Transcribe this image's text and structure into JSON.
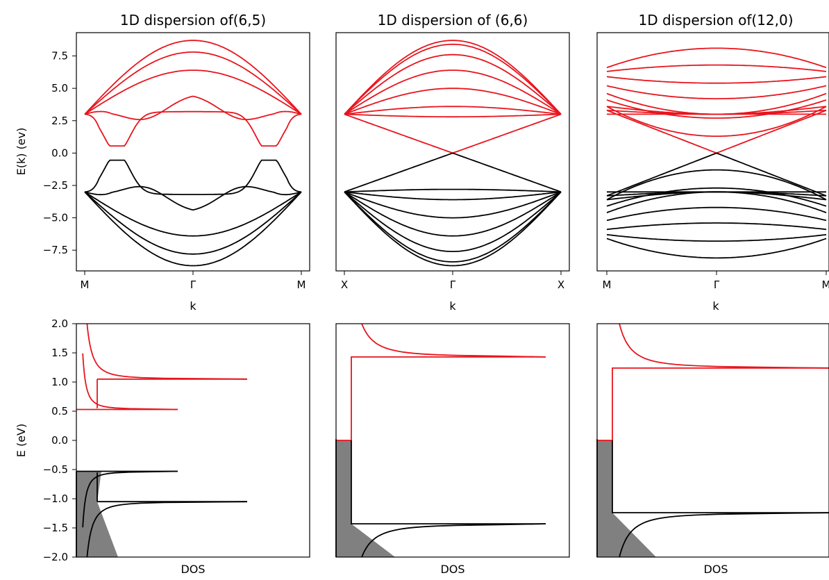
{
  "panels_top": [
    {
      "title": "1D dispersion of(6,5)",
      "xlabel": "k",
      "ylabel": "E(k) (ev)",
      "xticks": [
        "M",
        "Γ",
        "M"
      ],
      "ylim": [
        -9.1,
        9.3
      ],
      "yticks": [
        "7.5",
        "5.0",
        "2.5",
        "0.0",
        "−2.5",
        "−5.0",
        "−7.5"
      ],
      "show_yticks": true
    },
    {
      "title": "1D dispersion of (6,6)",
      "xlabel": "k",
      "ylabel": "",
      "xticks": [
        "X",
        "Γ",
        "X"
      ],
      "ylim": [
        -9.1,
        9.3
      ],
      "yticks": [],
      "show_yticks": false
    },
    {
      "title": "1D dispersion of(12,0)",
      "xlabel": "k",
      "ylabel": "",
      "xticks": [
        "M",
        "Γ",
        "M"
      ],
      "ylim": [
        -9.1,
        9.3
      ],
      "yticks": [],
      "show_yticks": false
    }
  ],
  "panels_bottom": [
    {
      "xlabel": "DOS",
      "ylabel": "E (eV)",
      "yticks": [
        "2.0",
        "1.5",
        "1.0",
        "0.5",
        "0.0",
        "−0.5",
        "−1.0",
        "−1.5",
        "−2.0"
      ],
      "show_yticks": true
    },
    {
      "xlabel": "DOS",
      "ylabel": "",
      "yticks": [],
      "show_yticks": false
    },
    {
      "xlabel": "DOS",
      "ylabel": "",
      "yticks": [],
      "show_yticks": false
    }
  ],
  "colors": {
    "conduction": "#e8141c",
    "valence": "#000000",
    "fill": "#808080"
  },
  "chart_data": [
    {
      "type": "line",
      "title": "1D dispersion of(6,5)",
      "xlabel": "k",
      "ylabel": "E(k) (ev)",
      "ylim": [
        -9.1,
        9.3
      ],
      "x_ticks": [
        "M",
        "Γ",
        "M"
      ],
      "edge_energy": 3.0,
      "conduction_gamma": [
        8.7,
        7.8,
        6.4,
        4.6,
        3.2
      ],
      "conduction_dips": [
        {
          "min": 0.55,
          "at": 0.15
        },
        {
          "min": 2.0,
          "at": 0.28
        }
      ],
      "valence_mirror": true
    },
    {
      "type": "line",
      "title": "1D dispersion of (6,6)",
      "xlabel": "k",
      "ylabel": "",
      "ylim": [
        -9.1,
        9.3
      ],
      "x_ticks": [
        "X",
        "Γ",
        "X"
      ],
      "edge_energy": 3.0,
      "conduction_gamma": [
        8.7,
        8.4,
        7.6,
        6.4,
        5.0,
        3.6,
        2.8
      ],
      "metallic_crossing": 0.0,
      "valence_mirror": true
    },
    {
      "type": "line",
      "title": "1D dispersion of(12,0)",
      "xlabel": "k",
      "ylabel": "",
      "ylim": [
        -9.1,
        9.3
      ],
      "x_ticks": [
        "M",
        "Γ",
        "M"
      ],
      "conduction_gamma": [
        8.1,
        6.8,
        5.4,
        4.2,
        3.0,
        2.7,
        1.3
      ],
      "conduction_edges": [
        6.6,
        6.3,
        5.9,
        5.2,
        4.6,
        4.1,
        3.6,
        3.3,
        3.0
      ],
      "metallic_crossing": 0.0,
      "valence_mirror": true
    },
    {
      "type": "line",
      "xlabel": "DOS",
      "ylabel": "E (eV)",
      "ylim": [
        -2.0,
        2.0
      ],
      "conduction_vhs": [
        0.53,
        1.05
      ],
      "valence_vhs": [
        -0.53,
        -1.05
      ],
      "fill_valence": true
    },
    {
      "type": "line",
      "xlabel": "DOS",
      "ylabel": "",
      "ylim": [
        -2.0,
        2.0
      ],
      "conduction_vhs": [
        1.43
      ],
      "valence_vhs": [
        -1.43
      ],
      "fill_valence": true
    },
    {
      "type": "line",
      "xlabel": "DOS",
      "ylabel": "",
      "ylim": [
        -2.0,
        2.0
      ],
      "conduction_vhs": [
        1.24
      ],
      "valence_vhs": [
        -1.24
      ],
      "fill_valence": true
    }
  ]
}
